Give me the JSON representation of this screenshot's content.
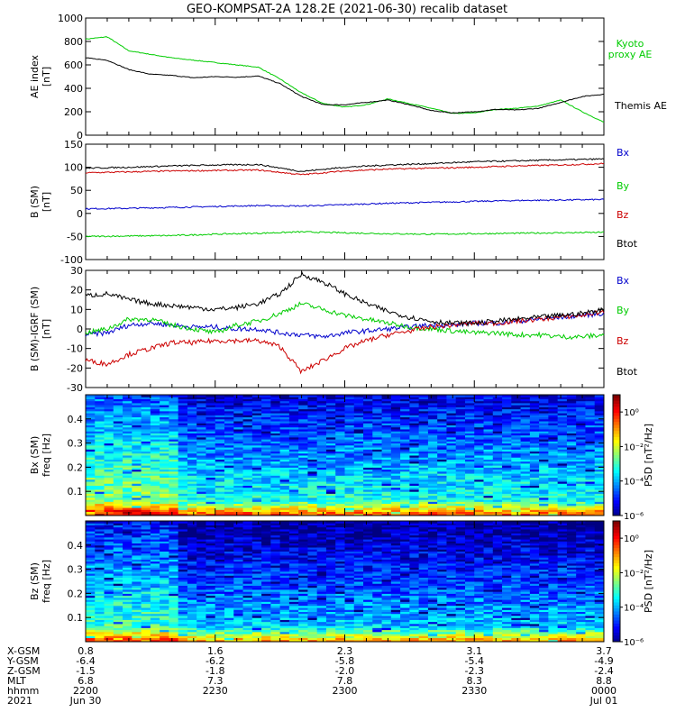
{
  "title": "GEO-KOMPSAT-2A 128.2E (2021-06-30) recalib dataset",
  "chart_data": [
    {
      "type": "line",
      "panel": "ae",
      "ylabel": [
        "AE index",
        "[nT]"
      ],
      "ylim": [
        0,
        1000
      ],
      "yticks": [
        0,
        200,
        400,
        600,
        800,
        1000
      ],
      "x": [
        "2200",
        "2205",
        "2210",
        "2215",
        "2220",
        "2225",
        "2230",
        "2235",
        "2240",
        "2245",
        "2250",
        "2255",
        "2300",
        "2305",
        "2310",
        "2315",
        "2320",
        "2325",
        "2330",
        "2335",
        "2340",
        "2345",
        "2350",
        "2355",
        "0000"
      ],
      "series": [
        {
          "name": "Kyoto proxy AE",
          "color": "#00cc00",
          "values": [
            820,
            840,
            720,
            690,
            660,
            640,
            620,
            600,
            580,
            480,
            360,
            270,
            240,
            260,
            310,
            270,
            230,
            185,
            190,
            220,
            230,
            250,
            300,
            200,
            110
          ]
        },
        {
          "name": "Themis AE",
          "color": "#000000",
          "values": [
            660,
            640,
            560,
            520,
            510,
            490,
            500,
            495,
            505,
            440,
            330,
            260,
            260,
            280,
            300,
            260,
            210,
            190,
            200,
            220,
            215,
            230,
            280,
            330,
            350
          ]
        }
      ]
    },
    {
      "type": "line",
      "panel": "b_sm",
      "ylabel": [
        "B (SM)",
        "[nT]"
      ],
      "ylim": [
        -100,
        150
      ],
      "yticks": [
        -100,
        -50,
        0,
        50,
        100,
        150
      ],
      "x": [
        "2200",
        "2210",
        "2220",
        "2230",
        "2240",
        "2250",
        "2300",
        "2310",
        "2320",
        "2330",
        "2340",
        "2350",
        "0000"
      ],
      "series": [
        {
          "name": "Bx",
          "color": "#0000cc",
          "values": [
            10,
            11,
            13,
            15,
            17,
            16,
            19,
            22,
            24,
            26,
            28,
            29,
            30
          ]
        },
        {
          "name": "By",
          "color": "#00cc00",
          "values": [
            -50,
            -49,
            -48,
            -45,
            -43,
            -40,
            -42,
            -44,
            -45,
            -44,
            -43,
            -42,
            -41
          ]
        },
        {
          "name": "Bz",
          "color": "#cc0000",
          "values": [
            88,
            90,
            92,
            93,
            94,
            84,
            92,
            96,
            98,
            100,
            103,
            105,
            108
          ]
        },
        {
          "name": "Btot",
          "color": "#000000",
          "values": [
            98,
            100,
            103,
            105,
            106,
            91,
            100,
            105,
            108,
            112,
            114,
            116,
            118
          ]
        }
      ]
    },
    {
      "type": "line",
      "panel": "b_minus_igrf",
      "ylabel": [
        "B (SM)-IGRF (SM)",
        "[nT]"
      ],
      "ylim": [
        -30,
        30
      ],
      "yticks": [
        -30,
        -20,
        -10,
        0,
        10,
        20,
        30
      ],
      "x": [
        "2200",
        "2205",
        "2210",
        "2215",
        "2220",
        "2225",
        "2230",
        "2235",
        "2240",
        "2245",
        "2250",
        "2255",
        "2300",
        "2305",
        "2310",
        "2315",
        "2320",
        "2325",
        "2330",
        "2335",
        "2340",
        "2345",
        "2350",
        "2355",
        "0000"
      ],
      "series": [
        {
          "name": "Bx",
          "color": "#0000cc",
          "values": [
            -3,
            -2,
            2,
            3,
            2,
            1,
            1,
            0,
            0,
            -2,
            -3,
            -4,
            -2,
            -1,
            0,
            1,
            2,
            2,
            3,
            3,
            4,
            5,
            6,
            7,
            8
          ]
        },
        {
          "name": "By",
          "color": "#00cc00",
          "values": [
            -2,
            0,
            5,
            5,
            2,
            0,
            -2,
            2,
            4,
            8,
            13,
            10,
            7,
            5,
            3,
            1,
            0,
            -1,
            -2,
            -2,
            -3,
            -3,
            -4,
            -4,
            -3
          ]
        },
        {
          "name": "Bz",
          "color": "#cc0000",
          "values": [
            -16,
            -18,
            -13,
            -10,
            -7,
            -7,
            -6,
            -6,
            -6,
            -9,
            -22,
            -16,
            -10,
            -6,
            -3,
            -1,
            1,
            2,
            3,
            3,
            4,
            5,
            6,
            7,
            9
          ]
        },
        {
          "name": "Btot",
          "color": "#000000",
          "values": [
            17,
            18,
            15,
            13,
            12,
            11,
            10,
            11,
            13,
            18,
            28,
            24,
            18,
            13,
            9,
            6,
            4,
            3,
            3,
            4,
            5,
            6,
            7,
            8,
            10
          ]
        }
      ]
    },
    {
      "type": "heatmap",
      "panel": "bx_psd",
      "ylabel": [
        "Bx (SM)",
        "freq [Hz]"
      ],
      "ylim": [
        0,
        0.5
      ],
      "yticks": [
        0.1,
        0.2,
        0.3,
        0.4
      ],
      "colorbar": {
        "label": "PSD [nT²/Hz]",
        "ticks": [
          "10⁰",
          "10⁻²",
          "10⁻⁴",
          "10⁻⁶"
        ],
        "log_range": [
          -6,
          1
        ]
      }
    },
    {
      "type": "heatmap",
      "panel": "bz_psd",
      "ylabel": [
        "Bz (SM)",
        "freq [Hz]"
      ],
      "ylim": [
        0,
        0.5
      ],
      "yticks": [
        0.1,
        0.2,
        0.3,
        0.4
      ],
      "colorbar": {
        "label": "PSD [nT²/Hz]",
        "ticks": [
          "10⁰",
          "10⁻²",
          "10⁻⁴",
          "10⁻⁶"
        ],
        "log_range": [
          -6,
          1
        ]
      }
    }
  ],
  "x_axis_table": {
    "row_labels": [
      "X-GSM",
      "Y-GSM",
      "Z-GSM",
      "MLT",
      "hhmm",
      "2021"
    ],
    "columns": [
      [
        "0.8",
        "-6.4",
        "-1.5",
        "6.8",
        "2200",
        "Jun 30"
      ],
      [
        "1.6",
        "-6.2",
        "-1.8",
        "7.3",
        "2230",
        ""
      ],
      [
        "2.3",
        "-5.8",
        "-2.0",
        "7.8",
        "2300",
        ""
      ],
      [
        "3.1",
        "-5.4",
        "-2.3",
        "8.3",
        "2330",
        ""
      ],
      [
        "3.7",
        "-4.9",
        "-2.4",
        "8.8",
        "0000",
        "Jul 01"
      ]
    ]
  }
}
